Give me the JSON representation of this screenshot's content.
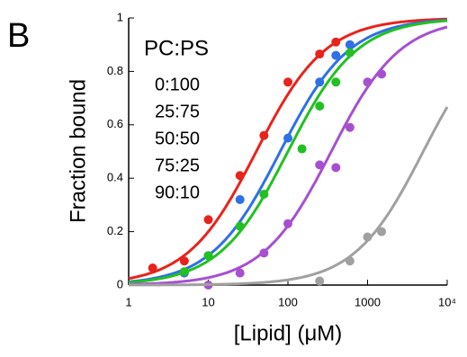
{
  "chart_data": {
    "type": "scatter",
    "panel_label": "B",
    "xlabel": "[Lipid] (μM)",
    "ylabel": "Fraction bound",
    "legend_title": "PC:PS",
    "xscale": "log",
    "xlim": [
      1,
      10000
    ],
    "xticks": [
      1,
      10,
      100,
      1000,
      {
        "value": 10000,
        "label": "10⁴"
      }
    ],
    "ylim": [
      0,
      1
    ],
    "yticks": [
      0,
      0.2,
      0.4,
      0.6,
      0.8,
      1
    ],
    "series": [
      {
        "name": "0:100",
        "color": "#e8231c",
        "fit_kd": 40,
        "x": [
          2,
          5,
          10,
          25,
          50,
          100,
          250,
          400
        ],
        "values": [
          0.064,
          0.09,
          0.245,
          0.41,
          0.56,
          0.76,
          0.865,
          0.91
        ]
      },
      {
        "name": "25:75",
        "color": "#2f6fe8",
        "fit_kd": 80,
        "x": [
          5,
          10,
          25,
          100,
          250,
          400,
          600
        ],
        "values": [
          0.045,
          0.11,
          0.32,
          0.55,
          0.76,
          0.86,
          0.9
        ]
      },
      {
        "name": "50:50",
        "color": "#22c022",
        "fit_kd": 100,
        "x": [
          5,
          10,
          25,
          50,
          150,
          250,
          400,
          600
        ],
        "values": [
          0.05,
          0.11,
          0.22,
          0.34,
          0.51,
          0.67,
          0.76,
          0.87
        ]
      },
      {
        "name": "75:25",
        "color": "#a650d0",
        "fit_kd": 350,
        "x": [
          10,
          25,
          50,
          100,
          250,
          400,
          600,
          1000,
          1500
        ],
        "values": [
          0,
          0.045,
          0.12,
          0.23,
          0.45,
          0.44,
          0.59,
          0.76,
          0.79
        ]
      },
      {
        "name": "90:10",
        "color": "#a0a0a0",
        "fit_kd": 5000,
        "x": [
          250,
          600,
          1000,
          1500
        ],
        "values": [
          0.015,
          0.09,
          0.18,
          0.2
        ]
      }
    ]
  }
}
